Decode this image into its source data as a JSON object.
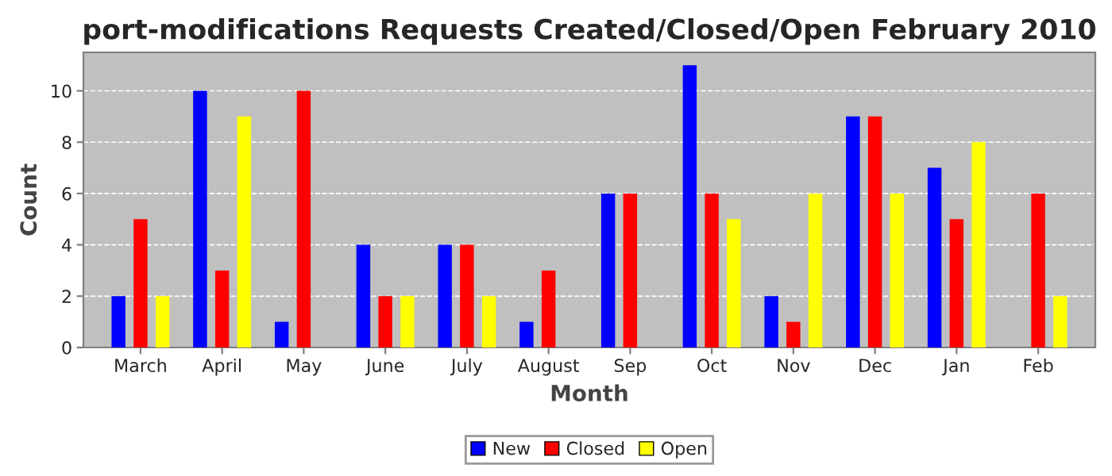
{
  "chart_data": {
    "type": "bar",
    "title": "port-modifications Requests Created/Closed/Open February 2010",
    "xlabel": "Month",
    "ylabel": "Count",
    "categories": [
      "March",
      "April",
      "May",
      "June",
      "July",
      "August",
      "Sep",
      "Oct",
      "Nov",
      "Dec",
      "Jan",
      "Feb"
    ],
    "series": [
      {
        "name": "New",
        "color": "#0000ff",
        "values": [
          2,
          10,
          1,
          4,
          4,
          1,
          6,
          11,
          2,
          9,
          7,
          0
        ]
      },
      {
        "name": "Closed",
        "color": "#ff0000",
        "values": [
          5,
          3,
          10,
          2,
          4,
          3,
          6,
          6,
          1,
          9,
          5,
          6
        ]
      },
      {
        "name": "Open",
        "color": "#ffff00",
        "values": [
          2,
          9,
          0,
          2,
          2,
          0,
          0,
          5,
          6,
          6,
          8,
          2
        ]
      }
    ],
    "ylim": [
      0,
      11.5
    ],
    "yticks": [
      0,
      2,
      4,
      6,
      8,
      10
    ],
    "grid": "y",
    "legend": "bottom"
  }
}
